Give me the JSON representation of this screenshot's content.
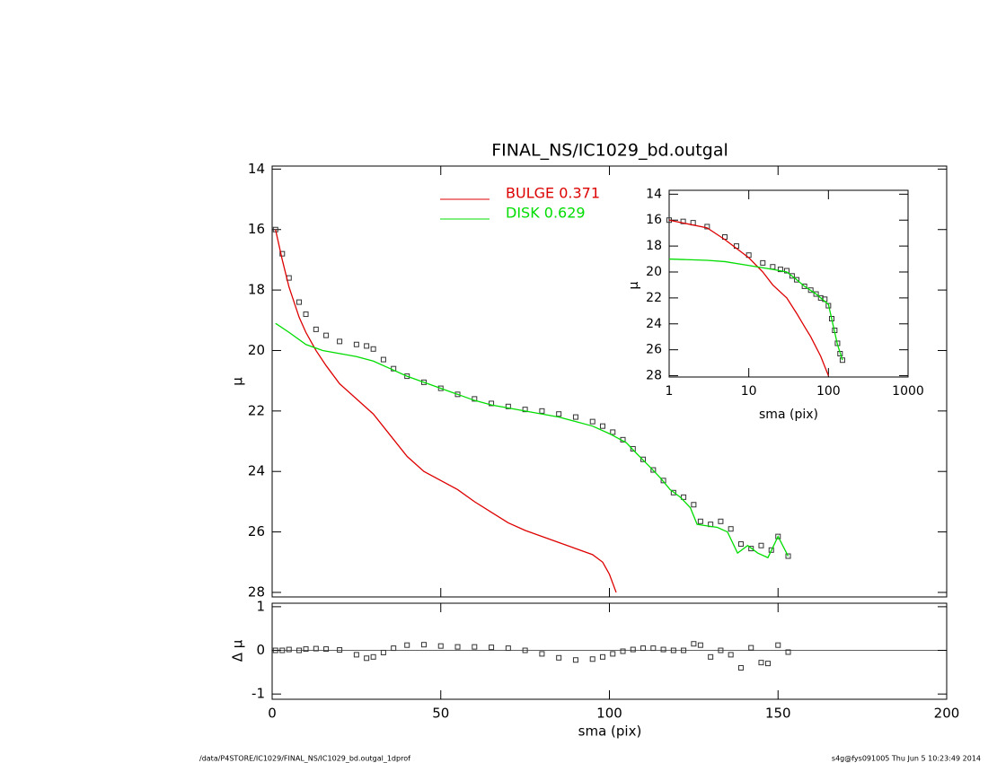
{
  "chart_data": [
    {
      "type": "line",
      "title": "FINAL_NS/IC1029_bd.outgal",
      "y_label": "μ",
      "xlim": [
        0,
        200
      ],
      "ylim": [
        28.15,
        13.9
      ],
      "xticks": [
        0,
        50,
        100,
        150,
        200
      ],
      "yticks": [
        14,
        16,
        18,
        20,
        22,
        24,
        26,
        28
      ],
      "series": [
        {
          "color": "#333333",
          "marker": "square",
          "x": [
            1,
            3,
            5,
            8,
            10,
            13,
            16,
            20,
            25,
            28,
            30,
            33,
            36,
            40,
            45,
            50,
            55,
            60,
            65,
            70,
            75,
            80,
            85,
            90,
            95,
            98,
            101,
            104,
            107,
            110,
            113,
            116,
            119,
            122,
            125,
            127,
            130,
            133,
            136,
            139,
            142,
            145,
            148,
            150,
            153
          ],
          "values": [
            16.0,
            16.8,
            17.6,
            18.4,
            18.8,
            19.3,
            19.5,
            19.7,
            19.8,
            19.85,
            19.95,
            20.3,
            20.6,
            20.85,
            21.05,
            21.25,
            21.45,
            21.6,
            21.75,
            21.85,
            21.95,
            22.0,
            22.1,
            22.2,
            22.35,
            22.5,
            22.7,
            22.95,
            23.25,
            23.6,
            23.95,
            24.3,
            24.7,
            24.85,
            25.1,
            25.65,
            25.75,
            25.65,
            25.9,
            26.4,
            26.55,
            26.45,
            26.6,
            26.15,
            26.8
          ]
        },
        {
          "name": "BULGE  0.371",
          "color": "#dd0000",
          "x": [
            1,
            3,
            5,
            8,
            10,
            13,
            16,
            20,
            25,
            28,
            30,
            35,
            40,
            45,
            50,
            55,
            60,
            65,
            70,
            75,
            80,
            85,
            90,
            95,
            98,
            100,
            102
          ],
          "values": [
            16.0,
            17.0,
            17.9,
            18.9,
            19.4,
            20.0,
            20.5,
            21.1,
            21.6,
            21.9,
            22.1,
            22.8,
            23.5,
            24.0,
            24.3,
            24.6,
            25.0,
            25.35,
            25.7,
            25.95,
            26.15,
            26.35,
            26.55,
            26.75,
            27.0,
            27.4,
            28.0
          ]
        },
        {
          "name": "DISK  0.629",
          "color": "#00dd00",
          "x": [
            1,
            5,
            10,
            15,
            20,
            25,
            30,
            35,
            40,
            45,
            50,
            55,
            60,
            65,
            70,
            75,
            80,
            85,
            90,
            95,
            100,
            105,
            108,
            112,
            115,
            118,
            121,
            124,
            126,
            129,
            132,
            135,
            138,
            141,
            144,
            147,
            150,
            153
          ],
          "values": [
            19.1,
            19.4,
            19.8,
            20.0,
            20.1,
            20.2,
            20.35,
            20.6,
            20.85,
            21.05,
            21.25,
            21.45,
            21.65,
            21.8,
            21.9,
            22.0,
            22.1,
            22.2,
            22.35,
            22.5,
            22.75,
            23.05,
            23.4,
            23.85,
            24.2,
            24.6,
            24.85,
            25.2,
            25.75,
            25.8,
            25.85,
            26.0,
            26.7,
            26.45,
            26.7,
            26.85,
            26.15,
            26.8
          ]
        }
      ]
    },
    {
      "type": "line",
      "x_label": "sma (pix)",
      "y_label": "Δ μ",
      "xlim": [
        0,
        200
      ],
      "ylim": [
        -1.12,
        1.08
      ],
      "xticks": [
        0,
        50,
        100,
        150,
        200
      ],
      "yticks": [
        -1,
        0,
        1
      ],
      "reference_line": 0,
      "series": [
        {
          "color": "#333333",
          "marker": "square",
          "x": [
            1,
            3,
            5,
            8,
            10,
            13,
            16,
            20,
            25,
            28,
            30,
            33,
            36,
            40,
            45,
            50,
            55,
            60,
            65,
            70,
            75,
            80,
            85,
            90,
            95,
            98,
            101,
            104,
            107,
            110,
            113,
            116,
            119,
            122,
            125,
            127,
            130,
            133,
            136,
            139,
            142,
            145,
            147,
            150,
            153
          ],
          "values": [
            0,
            0,
            0.02,
            0,
            0.03,
            0.04,
            0.03,
            0.01,
            -0.1,
            -0.18,
            -0.15,
            -0.05,
            0.05,
            0.12,
            0.13,
            0.1,
            0.08,
            0.08,
            0.07,
            0.05,
            0,
            -0.08,
            -0.17,
            -0.22,
            -0.2,
            -0.15,
            -0.08,
            -0.02,
            0.02,
            0.05,
            0.05,
            0.02,
            0,
            0,
            0.15,
            0.12,
            -0.15,
            0,
            -0.1,
            -0.4,
            0.06,
            -0.28,
            -0.3,
            0.12,
            -0.04
          ]
        }
      ]
    },
    {
      "type": "line",
      "x_label": "sma (pix)",
      "y_label": "μ",
      "log_x": true,
      "xlim": [
        1,
        1000
      ],
      "ylim": [
        28.1,
        13.7
      ],
      "xticks": [
        1,
        10,
        100,
        1000
      ],
      "yticks": [
        14,
        16,
        18,
        20,
        22,
        24,
        26,
        28
      ],
      "series": [
        {
          "color": "#333333",
          "marker": "square",
          "x": [
            1,
            1.5,
            2,
            3,
            5,
            7,
            10,
            15,
            20,
            25,
            30,
            35,
            40,
            50,
            60,
            70,
            80,
            90,
            100,
            110,
            120,
            130,
            140,
            150
          ],
          "values": [
            16.0,
            16.1,
            16.2,
            16.5,
            17.3,
            18.0,
            18.7,
            19.3,
            19.6,
            19.8,
            19.9,
            20.3,
            20.6,
            21.1,
            21.4,
            21.7,
            22.0,
            22.1,
            22.6,
            23.6,
            24.5,
            25.5,
            26.3,
            26.8
          ]
        },
        {
          "color": "#dd0000",
          "x": [
            1,
            3,
            5,
            10,
            15,
            20,
            30,
            40,
            50,
            60,
            80,
            100
          ],
          "values": [
            16.0,
            16.6,
            17.5,
            18.9,
            20.0,
            21.0,
            22.0,
            23.2,
            24.2,
            25.0,
            26.5,
            28.0
          ]
        },
        {
          "color": "#00dd00",
          "x": [
            1,
            3,
            5,
            10,
            20,
            30,
            40,
            50,
            70,
            100,
            130,
            150
          ],
          "values": [
            19.0,
            19.1,
            19.2,
            19.5,
            19.8,
            20.0,
            20.6,
            21.1,
            21.7,
            22.5,
            25.6,
            26.8
          ]
        }
      ]
    }
  ],
  "footer": {
    "left": "/data/P4STORE/IC1029/FINAL_NS/IC1029_bd.outgal_1dprof",
    "right": "s4g@fys091005  Thu Jun  5 10:23:49 2014"
  }
}
